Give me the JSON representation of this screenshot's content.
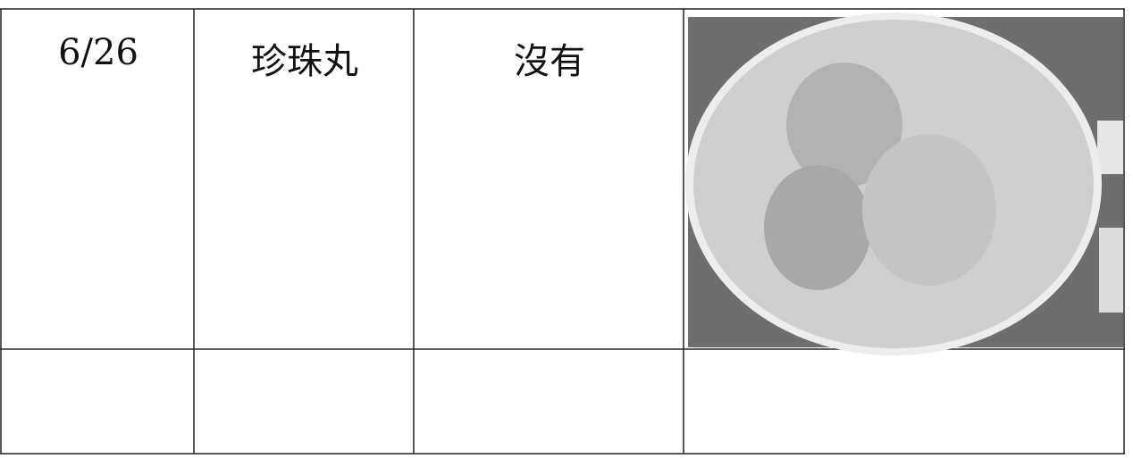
{
  "table": {
    "rows": [
      [
        "6/26",
        "珍珠丸",
        "沒有"
      ]
    ]
  }
}
